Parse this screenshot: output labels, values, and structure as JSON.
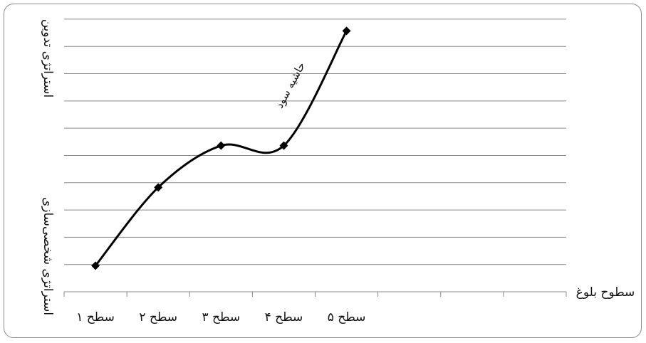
{
  "chart_data": {
    "type": "line",
    "title": "",
    "xlabel": "سطوح بلوغ",
    "ylabel_top": "استراتژی تدوین",
    "ylabel_bottom": "استراتژی شخصی‌سازی",
    "categories": [
      "سطح ۱",
      "سطح ۲",
      "سطح ۳",
      "سطح ۴",
      "سطح ۵"
    ],
    "series": [
      {
        "values": [
          1,
          4,
          5.6,
          5.6,
          10
        ]
      }
    ],
    "ylim": [
      0,
      10.5
    ],
    "y_gridlines": 10,
    "x_axis_slots": 8,
    "grid": true,
    "line_smooth": true,
    "marker": "diamond",
    "line_color": "#000000",
    "annotation": "حاشیه سود"
  }
}
